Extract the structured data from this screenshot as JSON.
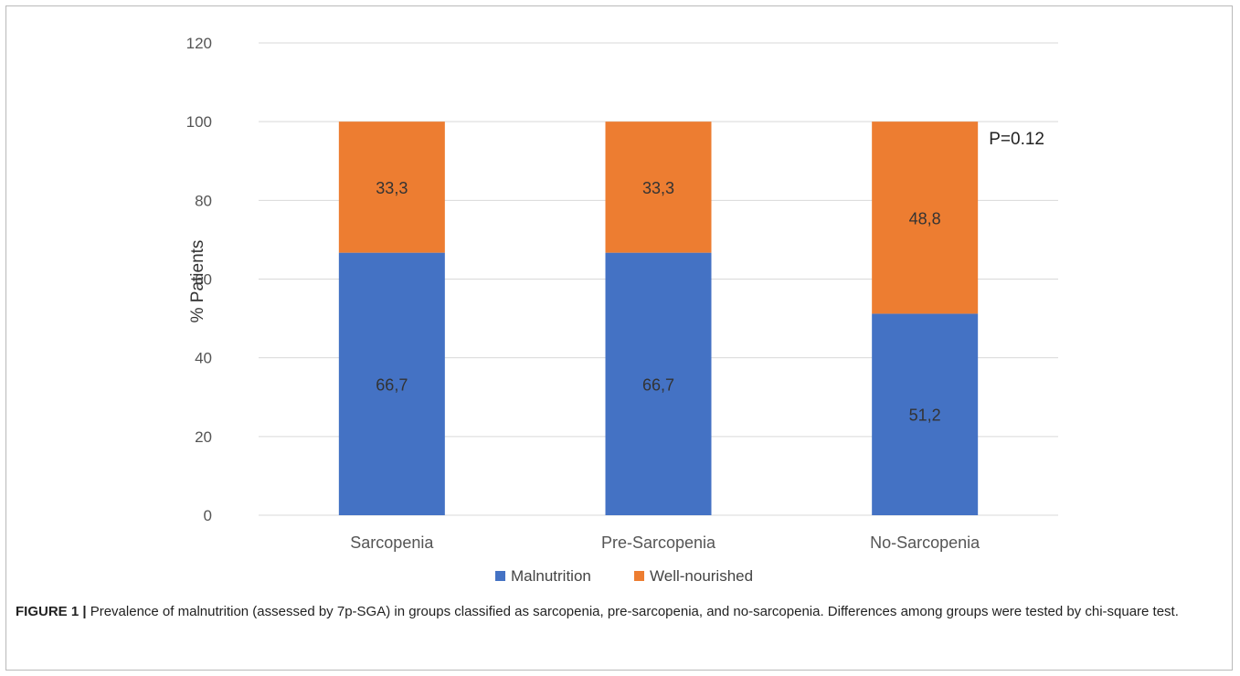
{
  "chart_data": {
    "type": "bar",
    "stacked": true,
    "categories": [
      "Sarcopenia",
      "Pre-Sarcopenia",
      "No-Sarcopenia"
    ],
    "series": [
      {
        "name": "Malnutrition",
        "values": [
          66.7,
          66.7,
          51.2
        ],
        "labels": [
          "66,7",
          "66,7",
          "51,2"
        ],
        "color": "#4472c4"
      },
      {
        "name": "Well-nourished",
        "values": [
          33.3,
          33.3,
          48.8
        ],
        "labels": [
          "33,3",
          "33,3",
          "48,8"
        ],
        "color": "#ed7d31"
      }
    ],
    "ylabel": "% Patients",
    "ylim": [
      0,
      120
    ],
    "yticks": [
      0,
      20,
      40,
      60,
      80,
      100,
      120
    ],
    "grid": true,
    "legend_position": "bottom",
    "annotation": "P=0.12"
  },
  "caption": {
    "label": "FIGURE 1 |",
    "text": " Prevalence of malnutrition (assessed by 7p-SGA) in groups classified as sarcopenia, pre-sarcopenia, and no-sarcopenia. Differences among groups were tested by chi-square test."
  }
}
